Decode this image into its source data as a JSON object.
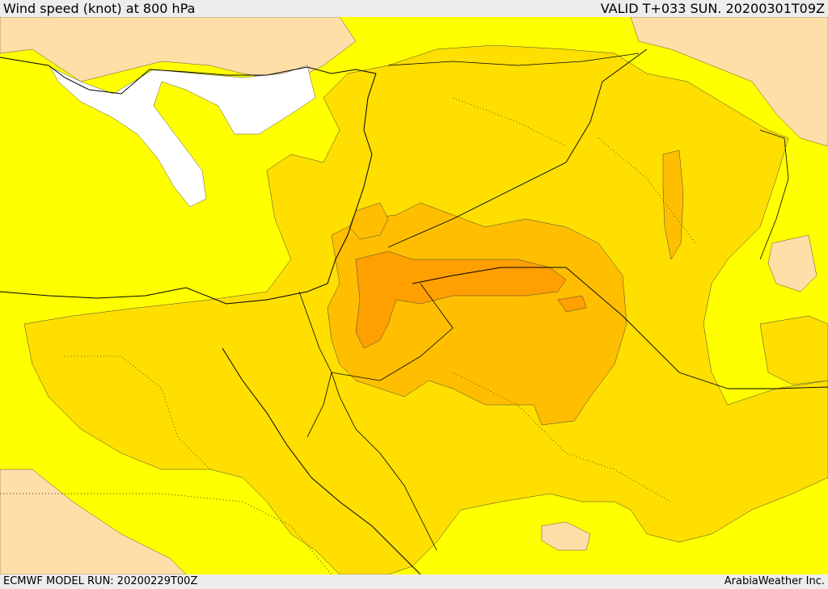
{
  "header": {
    "title": "Wind speed (knot) at 800 hPa",
    "valid": "VALID T+033 SUN. 20200301T09Z"
  },
  "footer": {
    "model_run": "ECMWF MODEL RUN: 20200229T00Z",
    "credit": "ArabiaWeather Inc."
  },
  "colors": {
    "band_low": "#ffffff",
    "band_1": "#ffff00",
    "band_2": "#ffdf00",
    "band_3": "#ffbf00",
    "band_4": "#ffa000",
    "land_light": "#ffdea8"
  }
}
